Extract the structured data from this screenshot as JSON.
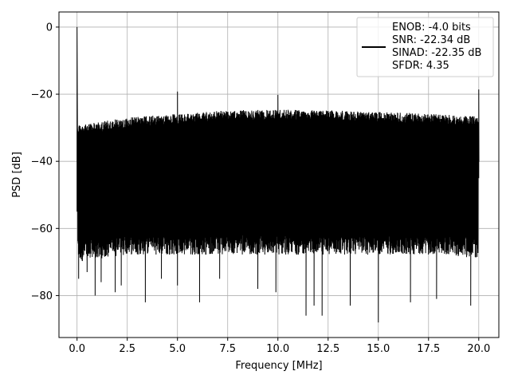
{
  "chart_data": {
    "type": "line",
    "title": "",
    "xlabel": "Frequency [MHz]",
    "ylabel": "PSD [dB]",
    "xlim": [
      -0.9,
      21.0
    ],
    "ylim": [
      -92.5,
      4.5
    ],
    "xticks": [
      0.0,
      2.5,
      5.0,
      7.5,
      10.0,
      12.5,
      15.0,
      17.5,
      20.0
    ],
    "xtick_labels": [
      "0.0",
      "2.5",
      "5.0",
      "7.5",
      "10.0",
      "12.5",
      "15.0",
      "17.5",
      "20.0"
    ],
    "yticks": [
      0,
      -20,
      -40,
      -60,
      -80
    ],
    "ytick_labels": [
      "0",
      "−20",
      "−40",
      "−60",
      "−80"
    ],
    "grid": true,
    "legend_position": "top-right",
    "legend_lines": [
      "ENOB: -4.0 bits",
      "SNR: -22.34 dB",
      "SINAD: -22.35 dB",
      "SFDR: 4.35"
    ],
    "line_color": "#000000",
    "noise_band": {
      "x": [
        0.2,
        2.5,
        5.0,
        7.5,
        10.0,
        12.5,
        15.0,
        17.5,
        19.9
      ],
      "upper": [
        -29.0,
        -27.0,
        -25.8,
        -24.8,
        -24.6,
        -24.8,
        -25.3,
        -25.8,
        -26.6
      ],
      "floor": [
        -68,
        -66,
        -66,
        -66,
        -66,
        -66,
        -66,
        -66,
        -67
      ]
    },
    "dips": [
      {
        "x": 0.08,
        "y": -75
      },
      {
        "x": 0.5,
        "y": -73
      },
      {
        "x": 0.9,
        "y": -80
      },
      {
        "x": 1.2,
        "y": -76
      },
      {
        "x": 1.9,
        "y": -79
      },
      {
        "x": 2.2,
        "y": -77
      },
      {
        "x": 3.4,
        "y": -82
      },
      {
        "x": 4.2,
        "y": -75
      },
      {
        "x": 5.0,
        "y": -77
      },
      {
        "x": 6.1,
        "y": -82
      },
      {
        "x": 7.1,
        "y": -75
      },
      {
        "x": 9.0,
        "y": -78
      },
      {
        "x": 9.9,
        "y": -79
      },
      {
        "x": 11.4,
        "y": -86
      },
      {
        "x": 11.8,
        "y": -83
      },
      {
        "x": 12.2,
        "y": -86
      },
      {
        "x": 13.6,
        "y": -83
      },
      {
        "x": 15.0,
        "y": -88
      },
      {
        "x": 16.6,
        "y": -82
      },
      {
        "x": 17.9,
        "y": -81
      },
      {
        "x": 19.6,
        "y": -83
      }
    ],
    "spurs": [
      {
        "x": 0.0,
        "y": 0.0
      },
      {
        "x": 5.0,
        "y": -19.2
      },
      {
        "x": 10.0,
        "y": -20.2
      },
      {
        "x": 20.0,
        "y": -18.6
      }
    ]
  }
}
